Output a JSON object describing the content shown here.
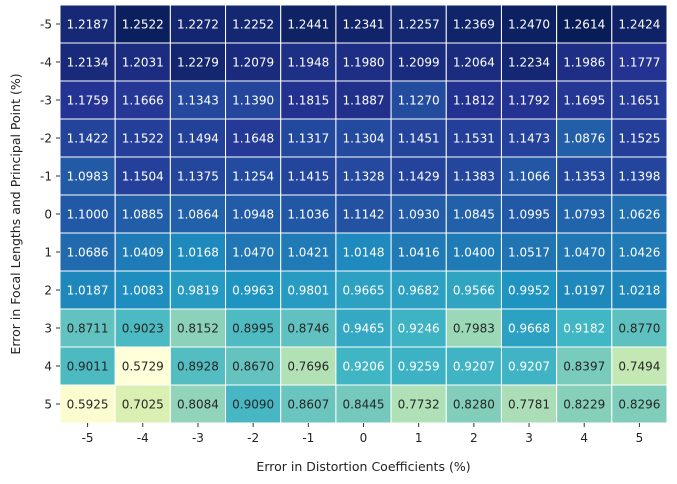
{
  "chart_data": {
    "type": "heatmap",
    "title": "",
    "xlabel": "Error in Distortion Coefficients (%)",
    "ylabel": "Error in Focal Lengths and Principal Point (%)",
    "x_categories": [
      "-5",
      "-4",
      "-3",
      "-2",
      "-1",
      "0",
      "1",
      "2",
      "3",
      "4",
      "5"
    ],
    "y_categories": [
      "-5",
      "-4",
      "-3",
      "-2",
      "-1",
      "0",
      "1",
      "2",
      "3",
      "4",
      "5"
    ],
    "values": [
      [
        1.2187,
        1.2522,
        1.2272,
        1.2252,
        1.2441,
        1.2341,
        1.2257,
        1.2369,
        1.247,
        1.2614,
        1.2424
      ],
      [
        1.2134,
        1.2031,
        1.2279,
        1.2079,
        1.1948,
        1.198,
        1.2099,
        1.2064,
        1.2234,
        1.1986,
        1.1777
      ],
      [
        1.1759,
        1.1666,
        1.1343,
        1.139,
        1.1815,
        1.1887,
        1.127,
        1.1812,
        1.1792,
        1.1695,
        1.1651
      ],
      [
        1.1422,
        1.1522,
        1.1494,
        1.1648,
        1.1317,
        1.1304,
        1.1451,
        1.1531,
        1.1473,
        1.0876,
        1.1525
      ],
      [
        1.0983,
        1.1504,
        1.1375,
        1.1254,
        1.1415,
        1.1328,
        1.1429,
        1.1383,
        1.1066,
        1.1353,
        1.1398
      ],
      [
        1.1,
        1.0885,
        1.0864,
        1.0948,
        1.1036,
        1.1142,
        1.093,
        1.0845,
        1.0995,
        1.0793,
        1.0626
      ],
      [
        1.0686,
        1.0409,
        1.0168,
        1.047,
        1.0421,
        1.0148,
        1.0416,
        1.04,
        1.0517,
        1.047,
        1.0426
      ],
      [
        1.0187,
        1.0083,
        0.9819,
        0.9963,
        0.9801,
        0.9665,
        0.9682,
        0.9566,
        0.9952,
        1.0197,
        1.0218
      ],
      [
        0.8711,
        0.9023,
        0.8152,
        0.8995,
        0.8746,
        0.9465,
        0.9246,
        0.7983,
        0.9668,
        0.9182,
        0.877
      ],
      [
        0.9011,
        0.5729,
        0.8928,
        0.867,
        0.7696,
        0.9206,
        0.9259,
        0.9207,
        0.9207,
        0.8397,
        0.7494
      ],
      [
        0.5925,
        0.7025,
        0.8084,
        0.909,
        0.8607,
        0.8445,
        0.7732,
        0.828,
        0.7781,
        0.8229,
        0.8296
      ]
    ],
    "value_format": "4 decimals",
    "colormap": "YlGnBu",
    "colormap_stops": [
      "#ffffd9",
      "#edf8b1",
      "#c7e9b4",
      "#7fcdbb",
      "#41b6c4",
      "#1d91c0",
      "#225ea8",
      "#253494",
      "#081d58"
    ],
    "vmin": 0.5729,
    "vmax": 1.2614,
    "cell_border_color": "#ffffff",
    "grid": false,
    "colorbar": false
  }
}
